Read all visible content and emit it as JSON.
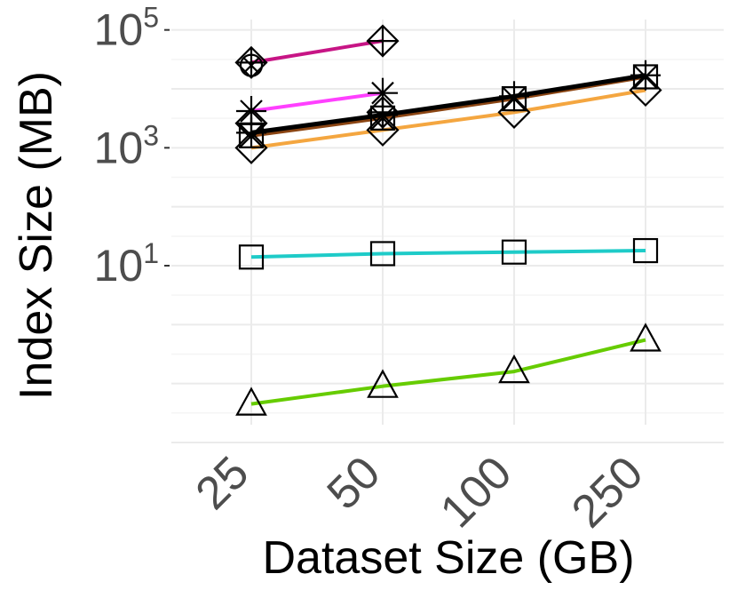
{
  "chart_data": {
    "type": "line",
    "xlabel": "Dataset Size (GB)",
    "ylabel": "Index Size (MB)",
    "categories": [
      "25",
      "50",
      "100",
      "250"
    ],
    "y_scale": "log10",
    "ylim": [
      0.02,
      150000
    ],
    "y_ticks": [
      {
        "value": 10,
        "base": "10",
        "exp": "1"
      },
      {
        "value": 1000,
        "base": "10",
        "exp": "3"
      },
      {
        "value": 100000,
        "base": "10",
        "exp": "5"
      }
    ],
    "grid": true,
    "series": [
      {
        "color": "#c71585",
        "marker": "diamond-plus",
        "width": 4,
        "values": [
          28000,
          65000,
          null,
          null
        ],
        "extra_markers": [
          {
            "index": 0,
            "marker": "circle-cross",
            "value": 25000
          }
        ]
      },
      {
        "color": "#ff40ff",
        "marker": "asterisk",
        "width": 4,
        "values": [
          4200,
          8500,
          null,
          null
        ]
      },
      {
        "color": "#f4a640",
        "marker": "diamond",
        "width": 4,
        "values": [
          1000,
          2000,
          4000,
          9500
        ]
      },
      {
        "color": "#8b4513",
        "marker": "square-cross",
        "width": 4,
        "values": [
          1600,
          3200,
          6800,
          16000
        ]
      },
      {
        "color": "#000000",
        "marker": "plus",
        "width": 5,
        "values": [
          1800,
          3600,
          7500,
          17000
        ],
        "extra_markers": [
          {
            "index": 0,
            "marker": "diamond-plus",
            "value": 2600
          },
          {
            "index": 1,
            "marker": "diamond-plus",
            "value": 4000
          }
        ]
      },
      {
        "color": "#1ecbc8",
        "marker": "square",
        "width": 4,
        "values": [
          14,
          16,
          17,
          18
        ]
      },
      {
        "color": "#66cc00",
        "marker": "triangle",
        "width": 4,
        "values": [
          0.045,
          0.09,
          0.16,
          0.55
        ]
      }
    ]
  }
}
